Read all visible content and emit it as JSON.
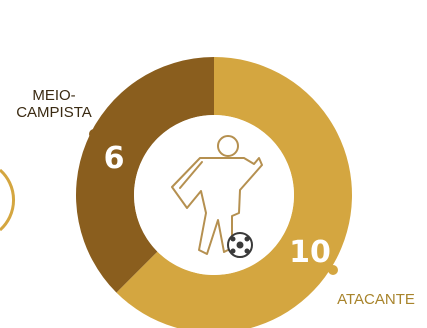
{
  "chart_data": {
    "type": "pie",
    "variant": "donut",
    "center_icon": "soccer-player-icon",
    "slices": [
      {
        "category": "ATACANTE",
        "value": 10,
        "color": "#d4a640"
      },
      {
        "category": "MEIO-\nCAMPISTA",
        "value": 6,
        "color": "#8a5e1e"
      }
    ],
    "label_color": "#a8842c",
    "side_slice_color": "#d4a640"
  }
}
